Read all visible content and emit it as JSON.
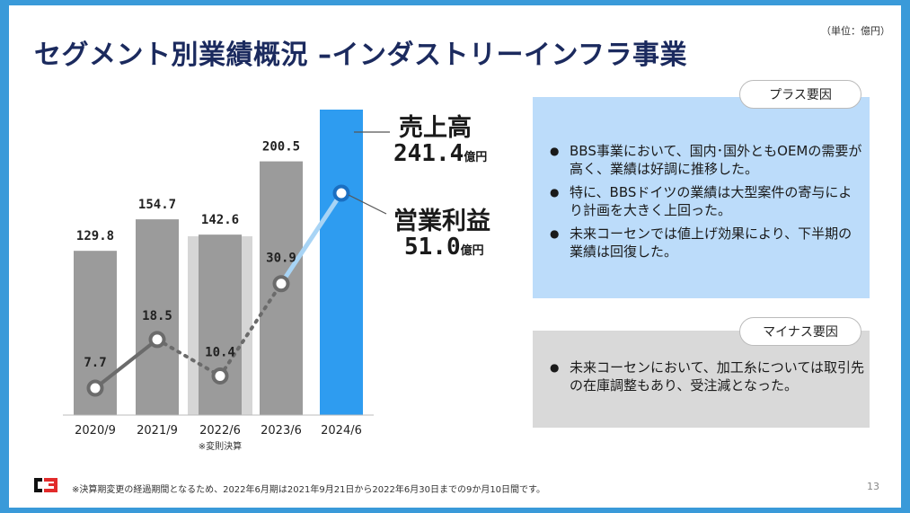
{
  "title": "セグメント別業績概況 –インダストリーインフラ事業",
  "unit_note": "（単位：億円）",
  "chart_data": {
    "type": "bar",
    "categories": [
      "2020/9",
      "2021/9",
      "2022/6",
      "2023/6",
      "2024/6"
    ],
    "category_notes": [
      "",
      "",
      "※変則決算",
      "",
      ""
    ],
    "series": [
      {
        "name": "売上高",
        "values": [
          129.8,
          154.7,
          142.6,
          200.5,
          241.4
        ],
        "labels": [
          "129.8",
          "154.7",
          "142.6",
          "200.5",
          ""
        ]
      },
      {
        "name": "営業利益",
        "values": [
          7.7,
          18.5,
          10.4,
          30.9,
          51.0
        ],
        "labels": [
          "7.7",
          "18.5",
          "10.4",
          "30.9",
          ""
        ]
      }
    ],
    "highlight_category": "2022/6",
    "colors": {
      "bar": "#9b9b9b",
      "bar_latest": "#2e9cf0",
      "bar_highlight_bg": "#d6d6d6",
      "line": "#6b6b6b",
      "line_latest": "#a8d4f5",
      "marker_latest": "#1a6fc2"
    }
  },
  "callouts": {
    "sales": {
      "label": "売上高",
      "value": "241.4",
      "unit": "億円"
    },
    "profit": {
      "label": "営業利益",
      "value": "51.0",
      "unit": "億円"
    }
  },
  "plus_box": {
    "title": "プラス要因",
    "items": [
      "BBS事業において、国内･国外ともOEMの需要が高く、業績は好調に推移した。",
      "特に、BBSドイツの業績は大型案件の寄与により計画を大きく上回った。",
      "未来コーセンでは値上げ効果により、下半期の業績は回復した。"
    ]
  },
  "minus_box": {
    "title": "マイナス要因",
    "items": [
      "未来コーセンにおいて、加工糸については取引先の在庫調整もあり、受注減となった。"
    ]
  },
  "footnote": "※決算期変更の経過期間となるため、2022年6月期は2021年9月21日から2022年6月30日までの9か月10日間です。",
  "page_number": "13",
  "logo_icon": "company-logo-icon"
}
